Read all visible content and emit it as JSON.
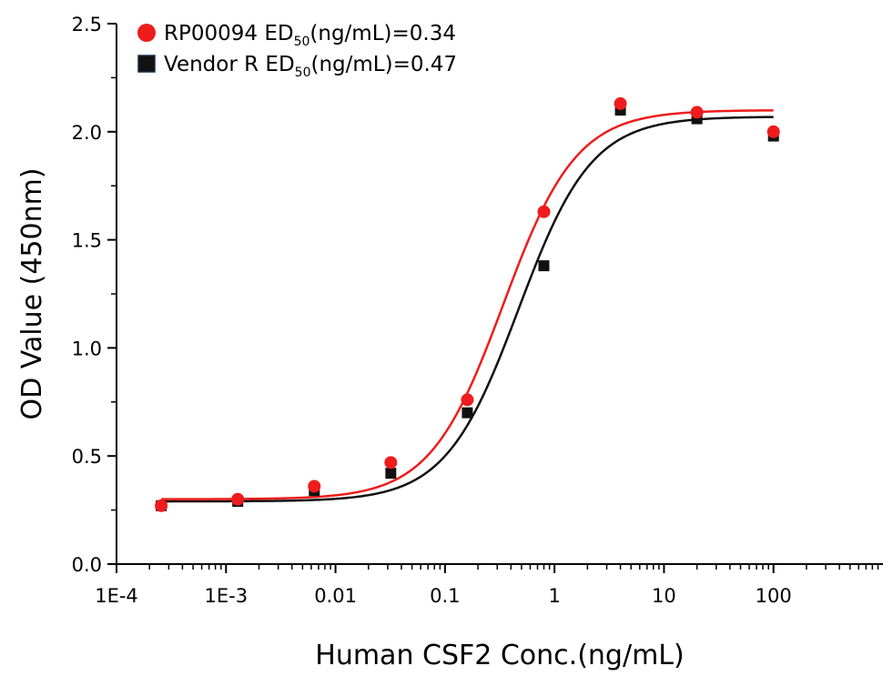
{
  "chart_data": {
    "type": "scatter",
    "x_scale": "log",
    "xlabel": "Human CSF2 Conc.(ng/mL)",
    "ylabel": "OD Value (450nm)",
    "xlim": [
      0.0001,
      1000
    ],
    "ylim": [
      0,
      2.5
    ],
    "x_tick_labels": [
      "1E-4",
      "1E-3",
      "0.01",
      "0.1",
      "1",
      "10",
      "100"
    ],
    "y_tick_labels": [
      "0.0",
      "0.5",
      "1.0",
      "1.5",
      "2.0",
      "2.5"
    ],
    "grid": false,
    "legend_position": "top-left",
    "series": [
      {
        "name": "RP00094 ED50(ng/mL)=0.34",
        "legend_prefix": "RP00094 ED",
        "legend_sub": "50",
        "legend_suffix": "(ng/mL)=0.34",
        "marker": "circle",
        "color": "#ee1c1c",
        "x": [
          0.000256,
          0.00128,
          0.0064,
          0.032,
          0.16,
          0.8,
          4,
          20,
          100
        ],
        "y": [
          0.27,
          0.3,
          0.36,
          0.47,
          0.76,
          1.63,
          2.13,
          2.09,
          2.0
        ],
        "fit": {
          "bottom": 0.3,
          "top": 2.1,
          "ed50": 0.34,
          "hill": 1.3
        }
      },
      {
        "name": "Vendor R ED50(ng/mL)=0.47",
        "legend_prefix": "Vendor R ED",
        "legend_sub": "50",
        "legend_suffix": "(ng/mL)=0.47",
        "marker": "square",
        "color": "#111111",
        "x": [
          0.000256,
          0.00128,
          0.0064,
          0.032,
          0.16,
          0.8,
          4,
          20,
          100
        ],
        "y": [
          0.27,
          0.29,
          0.34,
          0.42,
          0.7,
          1.38,
          2.1,
          2.06,
          1.98
        ],
        "fit": {
          "bottom": 0.29,
          "top": 2.07,
          "ed50": 0.47,
          "hill": 1.3
        }
      }
    ]
  }
}
